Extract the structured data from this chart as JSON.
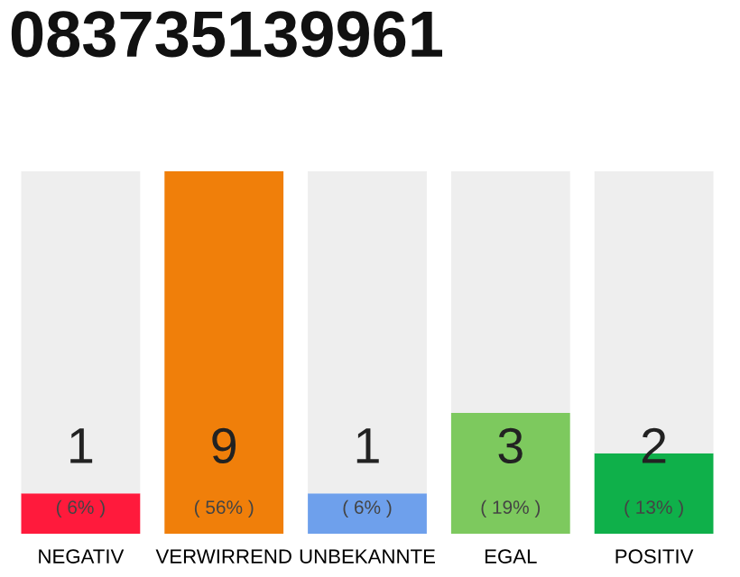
{
  "chart_data": {
    "type": "bar",
    "title": "083735139961",
    "categories": [
      "NEGATIV",
      "VERWIRREND",
      "UNBEKANNTE",
      "EGAL",
      "POSITIV"
    ],
    "stacked": true,
    "ylim": [
      0,
      9
    ],
    "tick_labels": "x",
    "grid": false,
    "legend": false,
    "series": [
      {
        "color": "#ff1a3c",
        "colors": [
          "#ff1a3c",
          "#f07f0a",
          "#6ea0ec",
          "#7dc95e",
          "#0fb04a"
        ],
        "values": [
          1,
          9,
          1,
          3,
          2
        ],
        "value_labels": [
          "1\n( 6% )",
          "9\n( 56% )",
          "1\n( 6% )",
          "3\n( 19% )",
          "2\n( 13% )"
        ]
      },
      {
        "color": "#eeeeee",
        "values": [
          8,
          0,
          8,
          6,
          7
        ]
      }
    ]
  }
}
